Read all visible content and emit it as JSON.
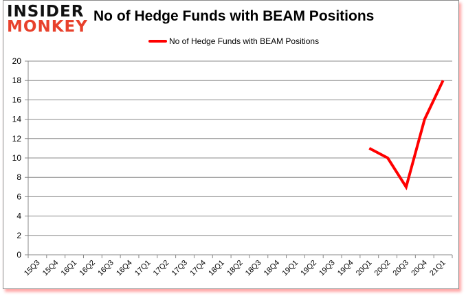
{
  "logo": {
    "line1": "INSIDER",
    "line2": "MONKEY"
  },
  "chart_data": {
    "type": "line",
    "title": "No of Hedge Funds with BEAM Positions",
    "xlabel": "",
    "ylabel": "",
    "ylim": [
      0,
      20
    ],
    "yticks": [
      0,
      2,
      4,
      6,
      8,
      10,
      12,
      14,
      16,
      18,
      20
    ],
    "grid": true,
    "legend_position": "top",
    "categories": [
      "15Q3",
      "15Q4",
      "16Q1",
      "16Q2",
      "16Q3",
      "16Q4",
      "17Q1",
      "17Q2",
      "17Q3",
      "17Q4",
      "18Q1",
      "18Q2",
      "18Q3",
      "18Q4",
      "19Q1",
      "19Q2",
      "19Q3",
      "19Q4",
      "20Q1",
      "20Q2",
      "20Q3",
      "20Q4",
      "21Q1"
    ],
    "series": [
      {
        "name": "No of Hedge Funds with BEAM Positions",
        "color": "#ff0000",
        "values": [
          null,
          null,
          null,
          null,
          null,
          null,
          null,
          null,
          null,
          null,
          null,
          null,
          null,
          null,
          null,
          null,
          null,
          null,
          11,
          10,
          7,
          14,
          18
        ]
      }
    ]
  }
}
